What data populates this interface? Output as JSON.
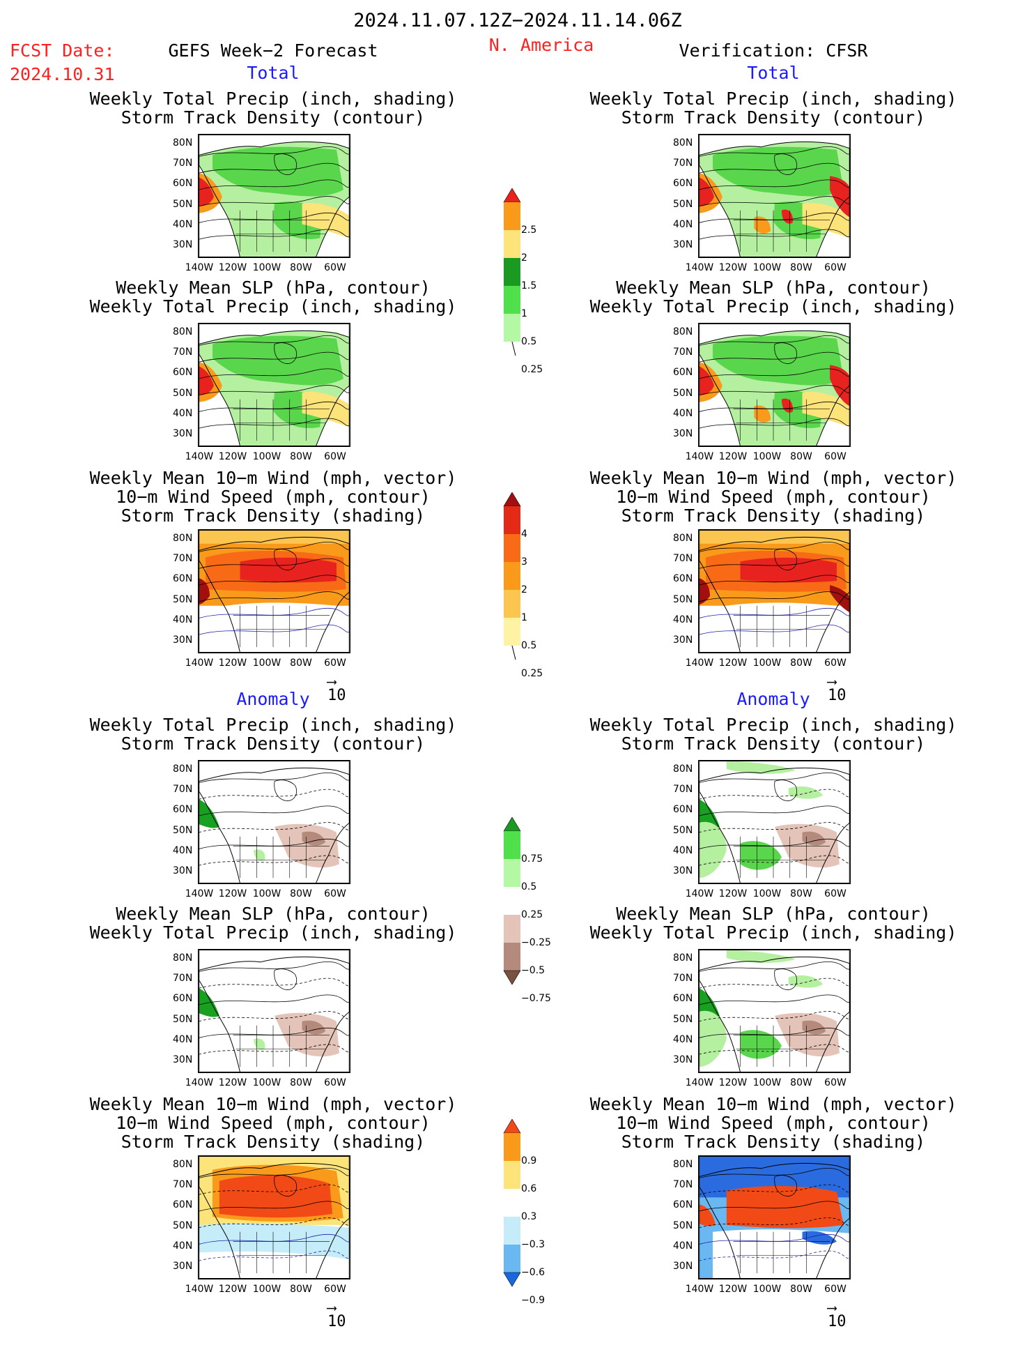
{
  "header": {
    "date_range": "2024.11.07.12Z−2024.11.14.06Z",
    "fcst_label": "FCST Date:",
    "fcst_date": "2024.10.31",
    "forecast_title": "GEFS Week−2 Forecast",
    "region": "N. America",
    "verification_title": "Verification: CFSR"
  },
  "sections": {
    "total": "Total",
    "anomaly": "Anomaly"
  },
  "titles": {
    "precip_track": [
      "Weekly Total Precip (inch, shading)",
      "Storm Track Density (contour)"
    ],
    "slp_precip": [
      "Weekly Mean SLP (hPa, contour)",
      "Weekly Total Precip (inch, shading)"
    ],
    "wind_track": [
      "Weekly Mean 10−m Wind (mph, vector)",
      "10−m Wind Speed (mph, contour)",
      "Storm Track Density (shading)"
    ]
  },
  "axes": {
    "lat_labels": [
      "80N",
      "70N",
      "60N",
      "50N",
      "40N",
      "30N"
    ],
    "lon_labels": [
      "140W",
      "120W",
      "100W",
      "80W",
      "60W"
    ]
  },
  "vector_scale": {
    "arrow": "⟶",
    "value": "10"
  },
  "colorbars": [
    {
      "labels": [
        "2.5",
        "2",
        "1.5",
        "1",
        "0.5",
        "0.25"
      ],
      "colors": [
        "#e8221f",
        "#f99a1a",
        "#fde47a",
        "#1a9a21",
        "#50e04a",
        "#b4f7a5"
      ]
    },
    {
      "labels": [
        "4",
        "3",
        "2",
        "1",
        "0.5",
        "0.25"
      ],
      "colors": [
        "#a10f0f",
        "#e32a17",
        "#f86a16",
        "#f99a1a",
        "#fbc54f",
        "#fdf3a2"
      ]
    },
    {
      "labels": [
        "0.75",
        "0.5",
        "0.25",
        "−0.25",
        "−0.5",
        "−0.75"
      ],
      "colors": [
        "#1a9a21",
        "#50e04a",
        "#b4f7a5",
        "#ffffff",
        "#e4c4b8",
        "#b48a7c",
        "#7a5040"
      ]
    },
    {
      "labels": [
        "0.9",
        "0.6",
        "0.3",
        "−0.3",
        "−0.6",
        "−0.9"
      ],
      "colors": [
        "#f24a16",
        "#f99a1a",
        "#fde47a",
        "#ffffff",
        "#c4ecf9",
        "#6ab8f2",
        "#1a68e0"
      ]
    }
  ],
  "colors": {
    "land_green": "#5ad64c",
    "light_green": "#b4f0a0",
    "dark_green": "#18a020",
    "orange": "#f99a1a",
    "red": "#e8221f",
    "blue_anom": "#2a6ce0"
  }
}
